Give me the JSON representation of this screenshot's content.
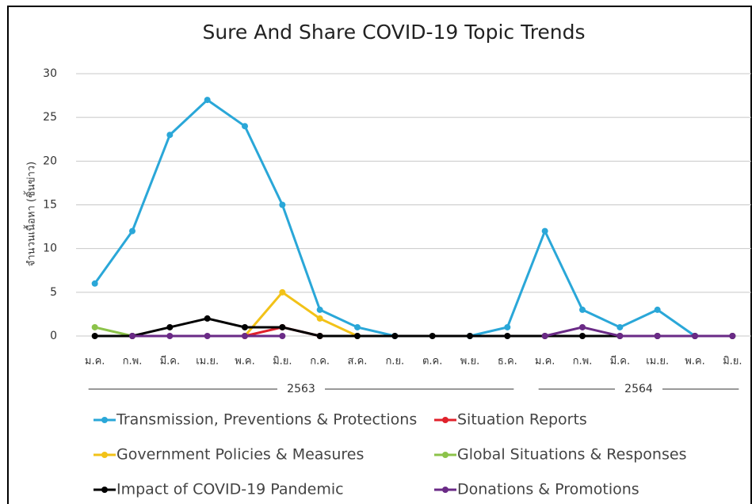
{
  "chart_data": {
    "type": "line",
    "title": "Sure And Share COVID-19 Topic Trends",
    "y_label": "จำนวนเนื้อหา (ชิ้นข่าว)",
    "categories": [
      "ม.ค.",
      "ก.พ.",
      "มี.ค.",
      "เม.ย.",
      "พ.ค.",
      "มิ.ย.",
      "ก.ค.",
      "ส.ค.",
      "ก.ย.",
      "ต.ค.",
      "พ.ย.",
      "ธ.ค.",
      "ม.ค.",
      "ก.พ.",
      "มี.ค.",
      "เม.ย.",
      "พ.ค.",
      "มิ.ย."
    ],
    "year_labels": [
      "2563",
      "2564"
    ],
    "ylim": [
      0,
      30
    ],
    "yticks": [
      0,
      5,
      10,
      15,
      20,
      25,
      30
    ],
    "grid": true,
    "series": [
      {
        "name": "Transmission, Preventions & Protections",
        "color": "#2aa7d8",
        "values": [
          6,
          12,
          23,
          27,
          24,
          15,
          3,
          1,
          0,
          null,
          0,
          1,
          12,
          3,
          1,
          3,
          0,
          null
        ]
      },
      {
        "name": "Situation Reports",
        "color": "#e0212b",
        "values": [
          null,
          null,
          null,
          null,
          0,
          1,
          0,
          null,
          null,
          null,
          null,
          null,
          null,
          null,
          null,
          null,
          null,
          null
        ]
      },
      {
        "name": "Government Policies & Measures",
        "color": "#f2c218",
        "values": [
          null,
          null,
          null,
          null,
          0,
          5,
          2,
          0,
          null,
          null,
          null,
          null,
          null,
          null,
          null,
          null,
          null,
          null
        ]
      },
      {
        "name": "Global Situations & Responses",
        "color": "#8cc34a",
        "values": [
          1,
          0,
          null,
          null,
          null,
          null,
          null,
          null,
          null,
          null,
          null,
          null,
          null,
          null,
          null,
          null,
          null,
          null
        ]
      },
      {
        "name": "Impact of COVID-19 Pandemic",
        "color": "#000000",
        "values": [
          0,
          0,
          1,
          2,
          1,
          1,
          0,
          0,
          0,
          0,
          0,
          0,
          0,
          0,
          0,
          0,
          0,
          0
        ]
      },
      {
        "name": "Donations & Promotions",
        "color": "#6a2a86",
        "values": [
          null,
          0,
          0,
          0,
          0,
          0,
          null,
          null,
          null,
          null,
          null,
          null,
          0,
          1,
          0,
          0,
          0,
          0
        ]
      }
    ]
  }
}
